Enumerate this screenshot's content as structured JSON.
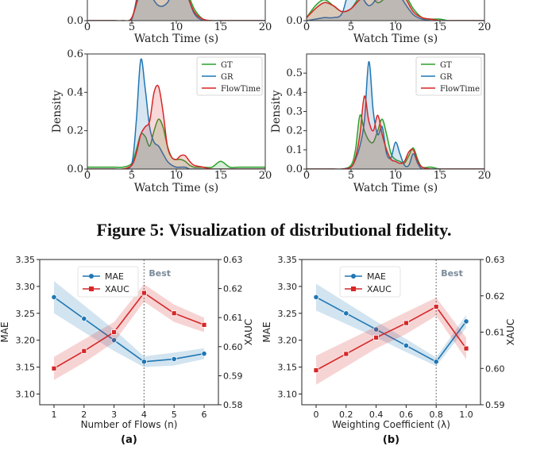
{
  "caption": "Figure 5: Visualization of distributional fidelity.",
  "colors": {
    "gt": "#2ca02c",
    "gr": "#1f77b4",
    "flowtime": "#d62728",
    "mae": "#1f77b4",
    "xauc": "#d62728"
  },
  "chart_data": [
    {
      "type": "area",
      "panel": "density-top-left",
      "xlabel": "Watch Time (s)",
      "ylabel": "",
      "xlim": [
        0,
        20
      ],
      "xticks": [
        "0",
        "5",
        "10",
        "15",
        "20"
      ],
      "yticks": [
        "0.0"
      ],
      "legend": [],
      "x": [
        0,
        1,
        2,
        3,
        4,
        5,
        6,
        7,
        8,
        9,
        10,
        11,
        12,
        13,
        14,
        15,
        16,
        17,
        18,
        19,
        20
      ],
      "series": [
        {
          "name": "GT",
          "values": [
            0,
            0,
            0,
            0,
            0,
            0.02,
            0.2,
            0.28,
            0.25,
            0.24,
            0.26,
            0.22,
            0.08,
            0.01,
            0,
            0,
            0,
            0,
            0,
            0,
            0
          ]
        },
        {
          "name": "GR",
          "values": [
            0,
            0,
            0,
            0,
            0,
            0.01,
            0.25,
            0.18,
            0.1,
            0.12,
            0.24,
            0.2,
            0.05,
            0,
            0,
            0,
            0,
            0,
            0,
            0,
            0
          ]
        },
        {
          "name": "FlowTime",
          "values": [
            0,
            0,
            0,
            0,
            0,
            0.02,
            0.22,
            0.3,
            0.2,
            0.22,
            0.28,
            0.2,
            0.06,
            0.01,
            0,
            0,
            0,
            0,
            0,
            0,
            0
          ]
        }
      ]
    },
    {
      "type": "area",
      "panel": "density-top-right",
      "xlabel": "Watch Time (s)",
      "ylabel": "",
      "xlim": [
        0,
        20
      ],
      "xticks": [
        "0",
        "5",
        "10",
        "15",
        "20"
      ],
      "yticks": [
        "0.0"
      ],
      "legend": [],
      "x": [
        0,
        1,
        2,
        3,
        4,
        5,
        6,
        7,
        8,
        9,
        10,
        11,
        12,
        13,
        14,
        15,
        16,
        17,
        18,
        19,
        20
      ],
      "series": [
        {
          "name": "GT",
          "values": [
            0.02,
            0.1,
            0.14,
            0.1,
            0.06,
            0.08,
            0.16,
            0.18,
            0.12,
            0.16,
            0.2,
            0.18,
            0.08,
            0.02,
            0.01,
            0.01,
            0,
            0,
            0,
            0,
            0
          ]
        },
        {
          "name": "GR",
          "values": [
            0,
            0.01,
            0.02,
            0.02,
            0.05,
            0.24,
            0.18,
            0.1,
            0.16,
            0.26,
            0.22,
            0.12,
            0.04,
            0.01,
            0,
            0,
            0,
            0,
            0,
            0,
            0
          ]
        },
        {
          "name": "FlowTime",
          "values": [
            0.02,
            0.08,
            0.12,
            0.1,
            0.06,
            0.08,
            0.14,
            0.16,
            0.14,
            0.18,
            0.2,
            0.16,
            0.06,
            0.02,
            0.01,
            0,
            0,
            0,
            0,
            0,
            0
          ]
        }
      ]
    },
    {
      "type": "area",
      "panel": "density-bottom-left",
      "xlabel": "Watch Time (s)",
      "ylabel": "Density",
      "xlim": [
        0,
        20
      ],
      "ylim": [
        0,
        0.6
      ],
      "xticks": [
        "0",
        "5",
        "10",
        "15",
        "20"
      ],
      "yticks": [
        "0.0",
        "0.2",
        "0.4",
        "0.6"
      ],
      "legend": [
        "GT",
        "GR",
        "FlowTime"
      ],
      "x": [
        0,
        1,
        2,
        3,
        4,
        5,
        5.5,
        6,
        6.5,
        7,
        7.5,
        8,
        8.5,
        9,
        9.5,
        10,
        10.5,
        11,
        11.5,
        12,
        13,
        14,
        15,
        16,
        17,
        18,
        19,
        20
      ],
      "series": [
        {
          "name": "GT",
          "values": [
            0.01,
            0.01,
            0.01,
            0.01,
            0.01,
            0.03,
            0.1,
            0.18,
            0.17,
            0.12,
            0.2,
            0.26,
            0.22,
            0.12,
            0.06,
            0.05,
            0.05,
            0.04,
            0.02,
            0.01,
            0.01,
            0.01,
            0.04,
            0.01,
            0.01,
            0.01,
            0.01,
            0.01
          ]
        },
        {
          "name": "GR",
          "values": [
            0,
            0,
            0,
            0,
            0,
            0.03,
            0.25,
            0.57,
            0.42,
            0.22,
            0.14,
            0.12,
            0.08,
            0.04,
            0.02,
            0.01,
            0.01,
            0.01,
            0,
            0,
            0,
            0,
            0,
            0,
            0,
            0,
            0,
            0
          ]
        },
        {
          "name": "FlowTime",
          "values": [
            0,
            0,
            0,
            0,
            0,
            0.02,
            0.08,
            0.18,
            0.22,
            0.25,
            0.4,
            0.43,
            0.3,
            0.12,
            0.06,
            0.05,
            0.07,
            0.07,
            0.04,
            0.02,
            0.01,
            0,
            0,
            0,
            0,
            0,
            0,
            0
          ]
        }
      ]
    },
    {
      "type": "area",
      "panel": "density-bottom-right",
      "xlabel": "Watch Time (s)",
      "ylabel": "Density",
      "xlim": [
        0,
        20
      ],
      "ylim": [
        0,
        0.6
      ],
      "xticks": [
        "0",
        "5",
        "10",
        "15",
        "20"
      ],
      "yticks": [
        "0.0",
        "0.1",
        "0.2",
        "0.3",
        "0.4",
        "0.5"
      ],
      "legend": [
        "GT",
        "GR",
        "FlowTime"
      ],
      "x": [
        0,
        1,
        2,
        3,
        4,
        5,
        5.5,
        6,
        6.5,
        7,
        7.5,
        8,
        8.5,
        9,
        9.5,
        10,
        10.5,
        11,
        11.5,
        12,
        12.5,
        13,
        14,
        15,
        16,
        17,
        18,
        19,
        20
      ],
      "series": [
        {
          "name": "GT",
          "values": [
            0,
            0,
            0,
            0,
            0,
            0.02,
            0.1,
            0.28,
            0.2,
            0.15,
            0.14,
            0.2,
            0.26,
            0.18,
            0.08,
            0.05,
            0.04,
            0.03,
            0.07,
            0.11,
            0.05,
            0.01,
            0.01,
            0,
            0,
            0,
            0,
            0,
            0
          ]
        },
        {
          "name": "GR",
          "values": [
            0,
            0,
            0,
            0,
            0,
            0.01,
            0.05,
            0.12,
            0.25,
            0.56,
            0.3,
            0.18,
            0.22,
            0.08,
            0.06,
            0.14,
            0.08,
            0.02,
            0.02,
            0.08,
            0.03,
            0,
            0,
            0,
            0,
            0,
            0,
            0,
            0
          ]
        },
        {
          "name": "FlowTime",
          "values": [
            0,
            0,
            0,
            0,
            0,
            0.01,
            0.06,
            0.18,
            0.38,
            0.25,
            0.2,
            0.28,
            0.18,
            0.1,
            0.05,
            0.04,
            0.03,
            0.04,
            0.09,
            0.1,
            0.04,
            0.01,
            0,
            0,
            0,
            0,
            0,
            0,
            0
          ]
        }
      ]
    },
    {
      "type": "line",
      "panel": "(a)",
      "label": "(a)",
      "xlabel": "Number of Flows (n)",
      "ylabel": "MAE",
      "ylabel2": "XAUC",
      "x": [
        1,
        2,
        3,
        4,
        5,
        6
      ],
      "xticks": [
        "1",
        "2",
        "3",
        "4",
        "5",
        "6"
      ],
      "ylim": [
        3.08,
        3.35
      ],
      "y2lim": [
        0.58,
        0.63
      ],
      "yticks": [
        "3.10",
        "3.15",
        "3.20",
        "3.25",
        "3.30",
        "3.35"
      ],
      "y2ticks": [
        "0.58",
        "0.59",
        "0.60",
        "0.61",
        "0.62",
        "0.63"
      ],
      "best_x": 4,
      "best_label": "Best",
      "legend": [
        "MAE",
        "XAUC"
      ],
      "series": [
        {
          "name": "MAE",
          "axis": "left",
          "values": [
            3.28,
            3.24,
            3.2,
            3.16,
            3.165,
            3.175
          ],
          "band": [
            0.03,
            0.025,
            0.02,
            0.01,
            0.012,
            0.01
          ]
        },
        {
          "name": "XAUC",
          "axis": "right",
          "values": [
            0.5925,
            0.5985,
            0.605,
            0.6185,
            0.6115,
            0.6075
          ],
          "band": [
            0.004,
            0.004,
            0.0035,
            0.003,
            0.003,
            0.0025
          ]
        }
      ]
    },
    {
      "type": "line",
      "panel": "(b)",
      "label": "(b)",
      "xlabel": "Weighting Coefficient (λ)",
      "ylabel": "MAE",
      "ylabel2": "XAUC",
      "x": [
        0,
        0.2,
        0.4,
        0.6,
        0.8,
        1.0
      ],
      "xticks": [
        "0",
        "0.2",
        "0.4",
        "0.6",
        "0.8",
        "1.0"
      ],
      "ylim": [
        3.08,
        3.35
      ],
      "y2lim": [
        0.59,
        0.63
      ],
      "yticks": [
        "3.10",
        "3.15",
        "3.20",
        "3.25",
        "3.30",
        "3.35"
      ],
      "y2ticks": [
        "0.59",
        "0.60",
        "0.61",
        "0.62",
        "0.63"
      ],
      "best_x": 0.8,
      "best_label": "Best",
      "legend": [
        "MAE",
        "XAUC"
      ],
      "series": [
        {
          "name": "MAE",
          "axis": "left",
          "values": [
            3.28,
            3.25,
            3.22,
            3.19,
            3.16,
            3.235
          ],
          "band": [
            0.025,
            0.02,
            0.015,
            0.012,
            0.008,
            0.012
          ]
        },
        {
          "name": "XAUC",
          "axis": "right",
          "values": [
            0.5995,
            0.604,
            0.6085,
            0.6125,
            0.617,
            0.6055
          ],
          "band": [
            0.004,
            0.0035,
            0.003,
            0.003,
            0.0025,
            0.003
          ]
        }
      ]
    }
  ]
}
